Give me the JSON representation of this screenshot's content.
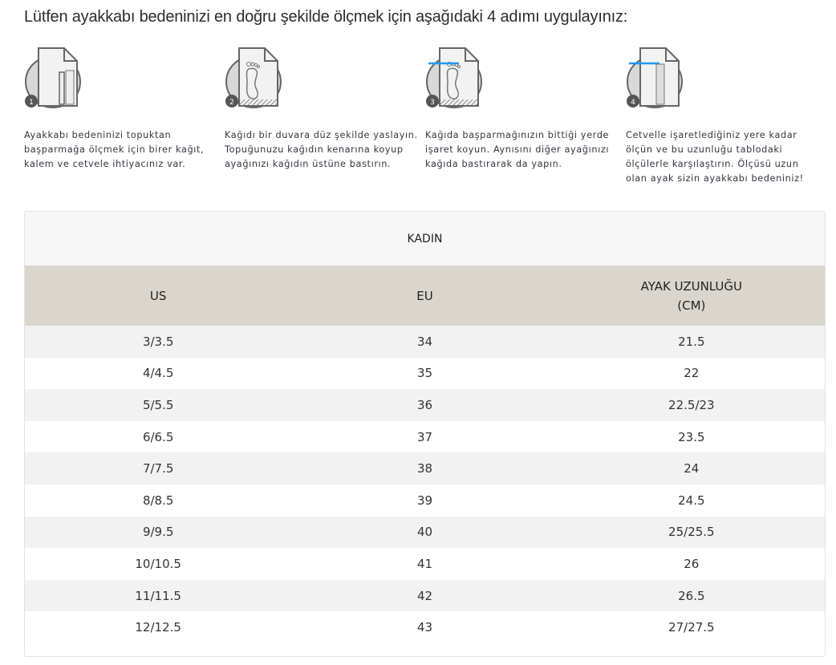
{
  "heading": "Lütfen ayakkabı bedeninizi en doğru şekilde ölçmek için aşağıdaki 4 adımı uygulayınız:",
  "steps": [
    {
      "number": "1",
      "icon": "paper-pencil-ruler-icon",
      "text": "Ayakkabı bedeninizi topuktan başparmağa ölçmek için birer kağıt, kalem ve cetvele ihtiyacınız var."
    },
    {
      "number": "2",
      "icon": "paper-footprint-wall-icon",
      "text": "Kağıdı bir duvara düz şekilde yaslayın. Topuğunuzu kağıdın kenarına koyup ayağınızı kağıdın üstüne bastırın."
    },
    {
      "number": "3",
      "icon": "paper-footprint-mark-icon",
      "text": "Kağıda başparmağınızın bittiği yerde işaret koyun. Aynısını diğer ayağınızı kağıda bastırarak da yapın."
    },
    {
      "number": "4",
      "icon": "paper-ruler-measure-icon",
      "text": "Cetvelle işaretlediğiniz yere kadar ölçün ve bu uzunluğu tablodaki ölçülerle karşılaştırın. Ölçüsü uzun olan ayak sizin ayakkabı bedeniniz!"
    }
  ],
  "accent": "#1e9be9",
  "table": {
    "title": "KADIN",
    "columns": [
      "US",
      "EU",
      "AYAK UZUNLUĞU\n(CM)"
    ],
    "rows": [
      [
        "3/3.5",
        "34",
        "21.5"
      ],
      [
        "4/4.5",
        "35",
        "22"
      ],
      [
        "5/5.5",
        "36",
        "22.5/23"
      ],
      [
        "6/6.5",
        "37",
        "23.5"
      ],
      [
        "7/7.5",
        "38",
        "24"
      ],
      [
        "8/8.5",
        "39",
        "24.5"
      ],
      [
        "9/9.5",
        "40",
        "25/25.5"
      ],
      [
        "10/10.5",
        "41",
        "26"
      ],
      [
        "11/11.5",
        "42",
        "26.5"
      ],
      [
        "12/12.5",
        "43",
        "27/27.5"
      ]
    ]
  }
}
